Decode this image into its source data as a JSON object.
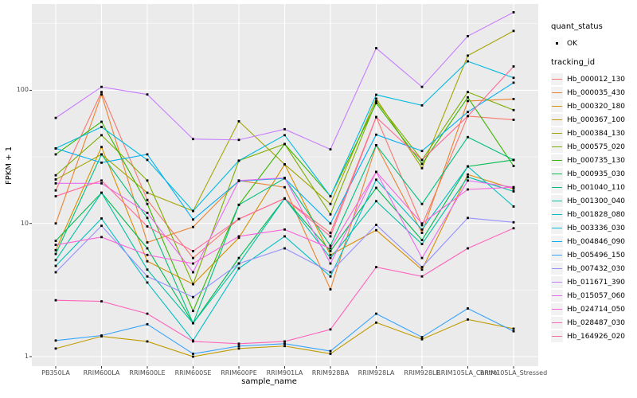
{
  "figure": {
    "panel_bg": "#EBEBEB",
    "grid_color": "#FFFFFF",
    "tick_color": "#333333",
    "tick_text_color": "#4D4D4D",
    "marker_color": "#000000"
  },
  "axes": {
    "x_title": "sample_name",
    "y_title": "FPKM + 1",
    "y_tick_labels": [
      "1",
      "10",
      "100"
    ]
  },
  "legend": {
    "quant_status": {
      "title": "quant_status",
      "items": [
        {
          "label": "OK",
          "shape": "point",
          "color": "#000000"
        }
      ]
    },
    "tracking_id": {
      "title": "tracking_id"
    }
  },
  "chart_data": {
    "type": "line",
    "title": "",
    "xlabel": "sample_name",
    "ylabel": "FPKM + 1",
    "y_scale": "log10",
    "ylim": [
      1,
      400
    ],
    "y_major_ticks": [
      1,
      10,
      100
    ],
    "y_minor_ticks": [
      3.162,
      31.62,
      316.2
    ],
    "grid": true,
    "legend_position": "right",
    "marker": "small-black-point",
    "x_categories": [
      "PB350LA",
      "RRIM600LA",
      "RRIM600LE",
      "RRIM600SE",
      "RRIM600PE",
      "RRIM901LA",
      "RRIM928BA",
      "RRIM928LA",
      "RRIM928LE",
      "RRIM105LA_Control",
      "RRIM105LA_Stressed"
    ],
    "series": [
      {
        "name": "Hb_000012_130",
        "color": "#F8766D",
        "values": [
          17.7,
          97,
          15,
          5.5,
          10.8,
          15.4,
          8.5,
          63,
          9.7,
          64,
          60
        ]
      },
      {
        "name": "Hb_000035_430",
        "color": "#EA8331",
        "values": [
          10,
          93,
          7.2,
          9.4,
          21,
          18.7,
          3.2,
          38.7,
          8.5,
          83,
          86
        ]
      },
      {
        "name": "Hb_000320_180",
        "color": "#D89000",
        "values": [
          6.3,
          37.5,
          5.2,
          3.5,
          7.8,
          27.8,
          5.8,
          8.9,
          4.5,
          23.3,
          18.2
        ]
      },
      {
        "name": "Hb_000367_100",
        "color": "#C09B00",
        "values": [
          1.15,
          1.42,
          1.3,
          1.0,
          1.15,
          1.2,
          1.05,
          1.8,
          1.35,
          1.9,
          1.62
        ]
      },
      {
        "name": "Hb_000384_130",
        "color": "#A3A500",
        "values": [
          21.4,
          33,
          17,
          12.4,
          58.5,
          27.8,
          14,
          86.5,
          26,
          182,
          279
        ]
      },
      {
        "name": "Hb_000575_020",
        "color": "#7CAE00",
        "values": [
          23,
          46,
          21,
          3.5,
          29.6,
          39.5,
          11.7,
          82.6,
          30,
          97,
          71
        ]
      },
      {
        "name": "Hb_000735_130",
        "color": "#39B600",
        "values": [
          33,
          58,
          14,
          2.2,
          13.8,
          39.5,
          16,
          80,
          28,
          88.5,
          27
        ]
      },
      {
        "name": "Hb_000935_030",
        "color": "#00BB4E",
        "values": [
          7.4,
          17,
          6.5,
          1.78,
          5.5,
          15.4,
          6.2,
          18.5,
          7.5,
          26.8,
          30
        ]
      },
      {
        "name": "Hb_001040_110",
        "color": "#00BF7D",
        "values": [
          5.9,
          33,
          11,
          1.78,
          13.8,
          21.8,
          6.8,
          38.7,
          14,
          44.5,
          30
        ]
      },
      {
        "name": "Hb_001300_040",
        "color": "#00C1A3",
        "values": [
          5.3,
          17,
          4.5,
          1.78,
          5.0,
          15.4,
          5.5,
          14.7,
          7.0,
          22.3,
          17.4
        ]
      },
      {
        "name": "Hb_001828_080",
        "color": "#00BFC4",
        "values": [
          4.8,
          10.9,
          3.6,
          1.32,
          4.6,
          8.0,
          4.0,
          21.3,
          9.0,
          26.8,
          13.4
        ]
      },
      {
        "name": "Hb_003336_030",
        "color": "#00BAE0",
        "values": [
          36.6,
          53,
          30,
          12.4,
          29.6,
          46,
          16,
          92.5,
          77,
          165,
          124
        ]
      },
      {
        "name": "Hb_004846_090",
        "color": "#00B0F6",
        "values": [
          36.6,
          28.6,
          33,
          10.7,
          20.8,
          21.8,
          10,
          46.4,
          35,
          68.7,
          114
        ]
      },
      {
        "name": "Hb_005496_150",
        "color": "#35A2FF",
        "values": [
          1.32,
          1.44,
          1.75,
          1.05,
          1.2,
          1.25,
          1.1,
          2.1,
          1.4,
          2.3,
          1.55
        ]
      },
      {
        "name": "Hb_007432_030",
        "color": "#9590FF",
        "values": [
          4.3,
          9.6,
          4.0,
          2.8,
          5.0,
          6.5,
          4.3,
          9.75,
          4.7,
          11,
          10.2
        ]
      },
      {
        "name": "Hb_011671_390",
        "color": "#C77CFF",
        "values": [
          62,
          106,
          93,
          43,
          42.4,
          51,
          36,
          207,
          106,
          255,
          385
        ]
      },
      {
        "name": "Hb_015057_060",
        "color": "#E76BF3",
        "values": [
          20,
          20,
          12,
          4.3,
          21,
          22,
          5.0,
          24.4,
          5.5,
          21,
          18.7
        ]
      },
      {
        "name": "Hb_024714_050",
        "color": "#FA62DB",
        "values": [
          6.9,
          7.9,
          5.8,
          5.0,
          8.0,
          9.0,
          6.5,
          24.4,
          10,
          18,
          18.7
        ]
      },
      {
        "name": "Hb_028487_030",
        "color": "#FF62BC",
        "values": [
          2.65,
          2.6,
          2.1,
          1.3,
          1.25,
          1.3,
          1.6,
          4.7,
          4.0,
          6.5,
          9.2
        ]
      },
      {
        "name": "Hb_164926_020",
        "color": "#FF6A98",
        "values": [
          16,
          21,
          9.5,
          6.2,
          10.8,
          15.4,
          8.0,
          62.7,
          30,
          64,
          151
        ]
      }
    ]
  }
}
